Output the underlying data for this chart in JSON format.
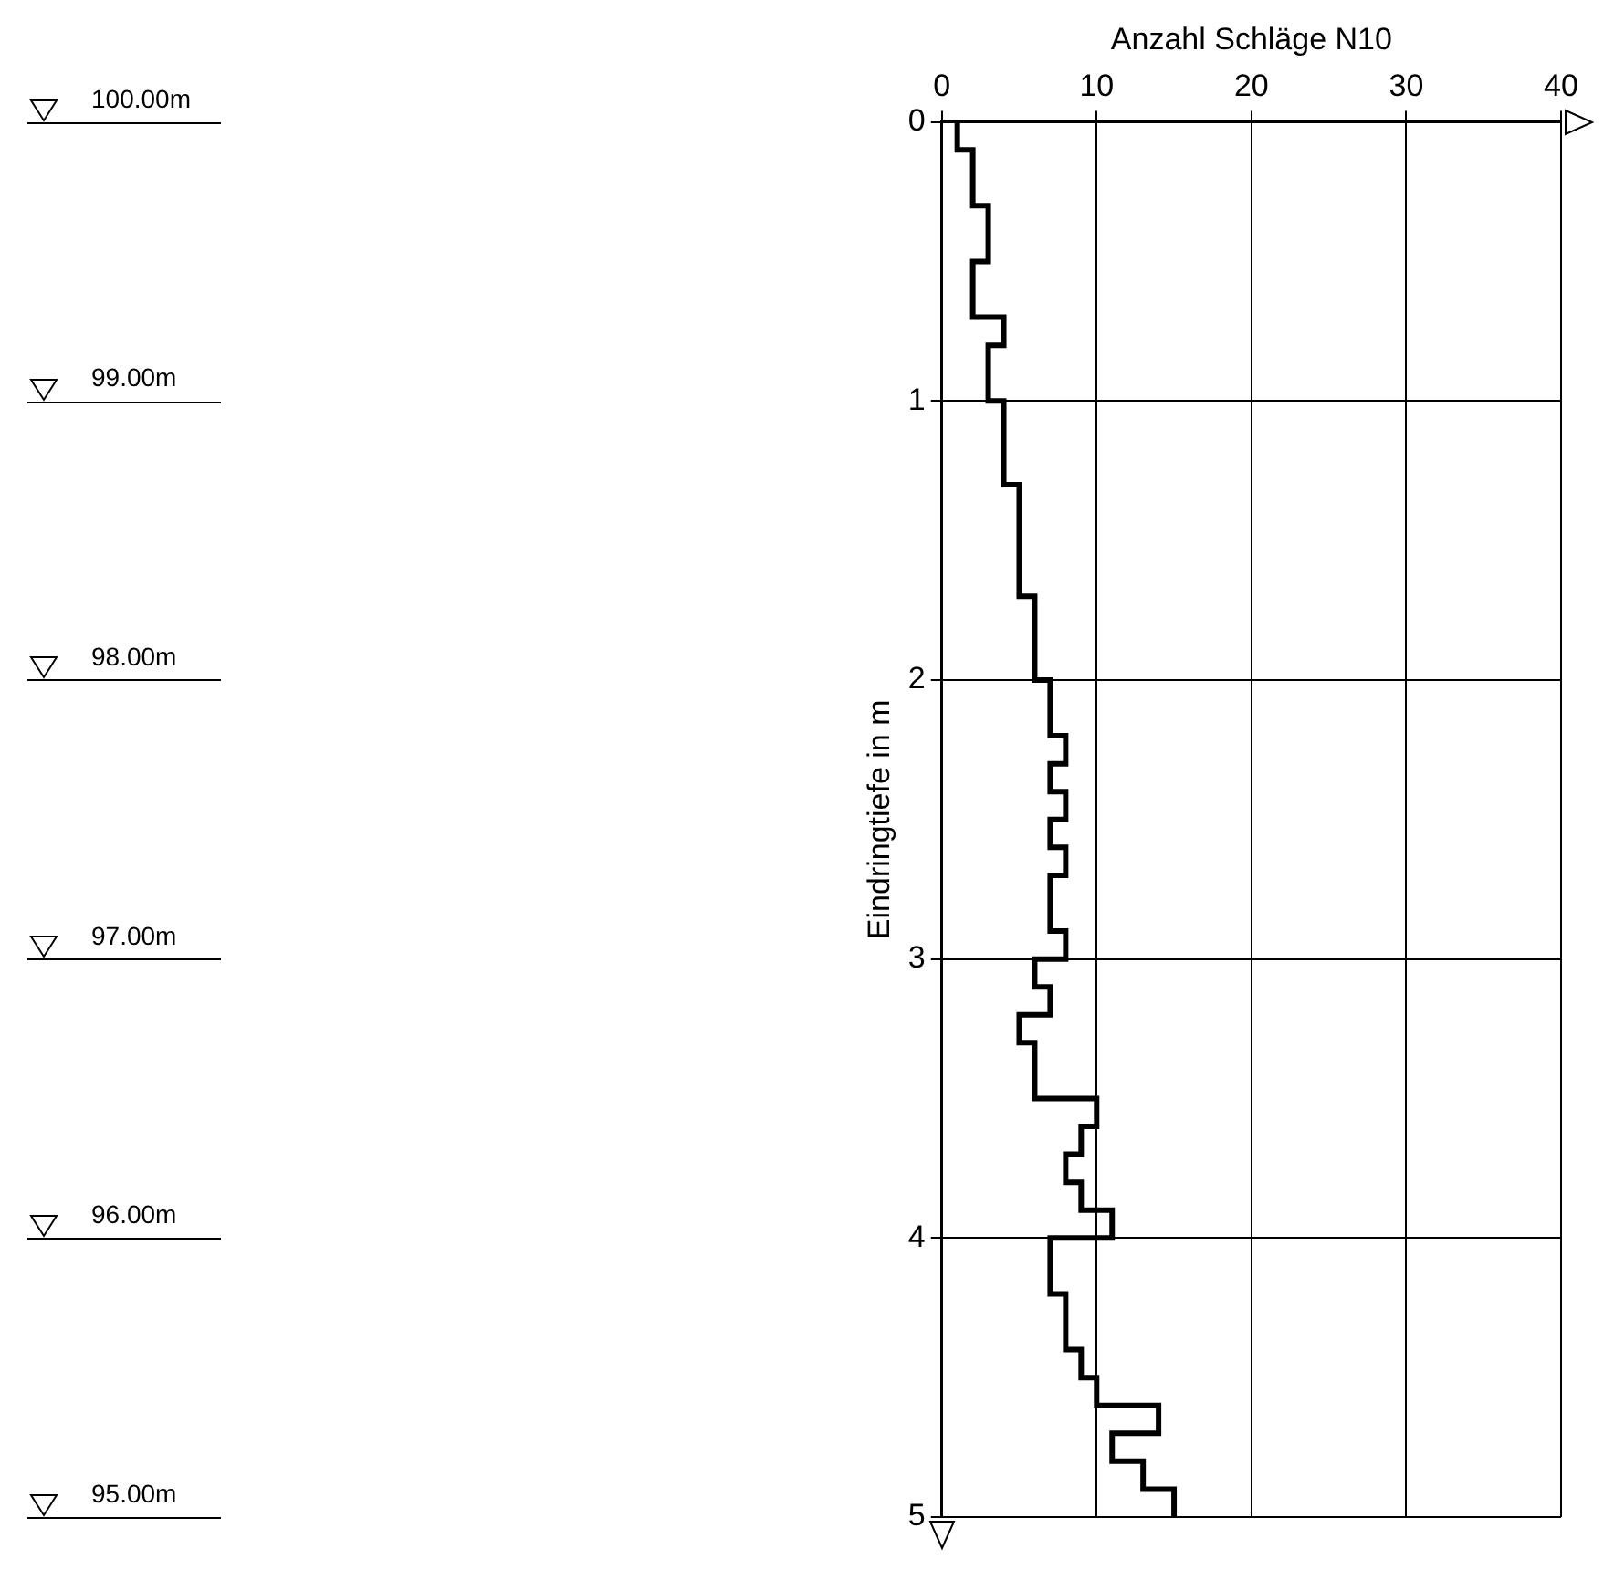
{
  "chart_data": {
    "type": "step",
    "orientation": "horizontal",
    "x2label": "Anzahl Schläge N10",
    "ylabel": "Eindringtiefe in m",
    "x": [
      0,
      0.1,
      0.2,
      0.3,
      0.4,
      0.5,
      0.6,
      0.7,
      0.8,
      0.9,
      1.0,
      1.1,
      1.2,
      1.3,
      1.4,
      1.5,
      1.6,
      1.7,
      1.8,
      1.9,
      2.0,
      2.1,
      2.2,
      2.3,
      2.4,
      2.5,
      2.6,
      2.7,
      2.8,
      2.9,
      3.0,
      3.1,
      3.2,
      3.3,
      3.4,
      3.5,
      3.6,
      3.7,
      3.8,
      3.9,
      4.0,
      4.1,
      4.2,
      4.3,
      4.4,
      4.5,
      4.6,
      4.7,
      4.8,
      4.9,
      5.0
    ],
    "series": [
      {
        "axis": "x2",
        "color": "#000000",
        "values": [
          1,
          2,
          2,
          3,
          3,
          2,
          2,
          4,
          3,
          3,
          4,
          4,
          4,
          5,
          5,
          5,
          5,
          6,
          6,
          6,
          7,
          7,
          8,
          7,
          8,
          7,
          8,
          7,
          7,
          8,
          6,
          7,
          5,
          6,
          6,
          10,
          9,
          8,
          9,
          11,
          7,
          7,
          8,
          8,
          9,
          10,
          14,
          11,
          13,
          15,
          15
        ]
      }
    ],
    "x2lim": [
      0,
      40
    ],
    "x2ticks": [
      0,
      10,
      20,
      30,
      40
    ],
    "ylim": [
      5,
      0
    ],
    "yticks": [
      0,
      1,
      2,
      3,
      4,
      5
    ],
    "y2lim": [
      95,
      100
    ],
    "y2ticks": [
      {
        "value": 100,
        "label": "100.00m"
      },
      {
        "value": 99,
        "label": "99.00m"
      },
      {
        "value": 98,
        "label": "98.00m"
      },
      {
        "value": 97,
        "label": "97.00m"
      },
      {
        "value": 96,
        "label": "96.00m"
      },
      {
        "value": 95,
        "label": "95.00m"
      }
    ],
    "grid": true
  }
}
